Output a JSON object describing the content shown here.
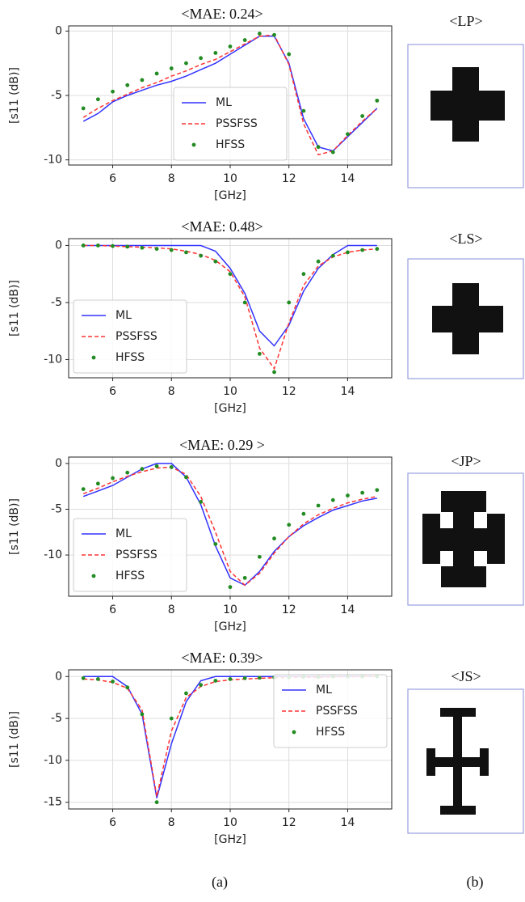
{
  "chart_data": [
    {
      "type": "line",
      "title": "<MAE: 0.24>",
      "x_label": "[GHz]",
      "y_label": "[s11 (dB)]",
      "x": [
        5,
        5.5,
        6,
        6.5,
        7,
        7.5,
        8,
        8.5,
        9,
        9.5,
        10,
        10.5,
        11,
        11.5,
        12,
        12.5,
        13,
        13.5,
        14,
        14.5,
        15
      ],
      "series": [
        {
          "name": "ML",
          "color": "#3333ff",
          "style": "solid",
          "values": [
            -7.0,
            -6.4,
            -5.5,
            -5.0,
            -4.6,
            -4.2,
            -3.9,
            -3.5,
            -3.0,
            -2.5,
            -1.8,
            -1.1,
            -0.4,
            -0.4,
            -2.5,
            -6.8,
            -9.0,
            -9.3,
            -8.2,
            -7.1,
            -6.0
          ]
        },
        {
          "name": "PSSFSS",
          "color": "#ff3333",
          "style": "dashed",
          "values": [
            -6.7,
            -6.0,
            -5.4,
            -4.9,
            -4.4,
            -4.0,
            -3.5,
            -3.1,
            -2.6,
            -2.2,
            -1.6,
            -1.0,
            -0.4,
            -0.3,
            -2.6,
            -7.2,
            -9.6,
            -9.3,
            -8.1,
            -7.0,
            -6.0
          ]
        },
        {
          "name": "HFSS",
          "color": "#228b22",
          "style": "markers",
          "values": [
            -6.0,
            -5.3,
            -4.7,
            -4.2,
            -3.8,
            -3.3,
            -2.9,
            -2.5,
            -2.1,
            -1.7,
            -1.2,
            -0.7,
            -0.2,
            -0.3,
            -1.8,
            -6.2,
            -9.0,
            -9.4,
            -8.0,
            -6.6,
            -5.4
          ]
        }
      ],
      "xlim": [
        4.5,
        15.5
      ],
      "xticks": [
        6,
        8,
        10,
        12,
        14
      ],
      "ylim": [
        -10.4,
        0.4
      ],
      "yticks": [
        -10,
        -5,
        0
      ],
      "grid": true,
      "legend": "lower center"
    },
    {
      "type": "line",
      "title": "<MAE: 0.48>",
      "x_label": "[GHz]",
      "y_label": "[s11 (dB)]",
      "x": [
        5,
        5.5,
        6,
        6.5,
        7,
        7.5,
        8,
        8.5,
        9,
        9.5,
        10,
        10.5,
        11,
        11.5,
        12,
        12.5,
        13,
        13.5,
        14,
        14.5,
        15
      ],
      "series": [
        {
          "name": "ML",
          "color": "#3333ff",
          "style": "solid",
          "values": [
            0,
            0,
            0,
            0,
            0,
            0,
            0,
            0,
            0,
            -0.5,
            -2.0,
            -4.2,
            -7.5,
            -8.8,
            -7.0,
            -4.0,
            -2.0,
            -0.8,
            0,
            0,
            0
          ]
        },
        {
          "name": "PSSFSS",
          "color": "#ff3333",
          "style": "dashed",
          "values": [
            0,
            0,
            -0.05,
            -0.1,
            -0.15,
            -0.2,
            -0.3,
            -0.5,
            -0.8,
            -1.3,
            -2.3,
            -4.5,
            -9.0,
            -10.8,
            -6.8,
            -3.5,
            -1.8,
            -1.0,
            -0.6,
            -0.4,
            -0.3
          ]
        },
        {
          "name": "HFSS",
          "color": "#228b22",
          "style": "markers",
          "values": [
            0,
            0,
            -0.05,
            -0.1,
            -0.2,
            -0.3,
            -0.4,
            -0.6,
            -0.9,
            -1.4,
            -2.5,
            -5.0,
            -9.5,
            -11.1,
            -5.0,
            -2.5,
            -1.4,
            -0.9,
            -0.6,
            -0.4,
            -0.3
          ]
        }
      ],
      "xlim": [
        4.5,
        15.5
      ],
      "xticks": [
        6,
        8,
        10,
        12,
        14
      ],
      "ylim": [
        -11.6,
        0.6
      ],
      "yticks": [
        -10,
        -5,
        0
      ],
      "grid": true,
      "legend": "lower left"
    },
    {
      "type": "line",
      "title": "<MAE: 0.29 >",
      "x_label": "[GHz]",
      "y_label": "[s11 (dB)]",
      "x": [
        5,
        5.5,
        6,
        6.5,
        7,
        7.5,
        8,
        8.5,
        9,
        9.5,
        10,
        10.5,
        11,
        11.5,
        12,
        12.5,
        13,
        13.5,
        14,
        14.5,
        15
      ],
      "series": [
        {
          "name": "ML",
          "color": "#3333ff",
          "style": "solid",
          "values": [
            -3.6,
            -3.0,
            -2.4,
            -1.5,
            -0.6,
            0,
            0,
            -1.5,
            -4.5,
            -9.0,
            -12.5,
            -13.3,
            -11.8,
            -9.6,
            -8.0,
            -6.8,
            -5.9,
            -5.1,
            -4.6,
            -4.1,
            -3.8
          ]
        },
        {
          "name": "PSSFSS",
          "color": "#ff3333",
          "style": "dashed",
          "values": [
            -3.3,
            -2.7,
            -2.0,
            -1.4,
            -0.9,
            -0.5,
            -0.4,
            -1.2,
            -3.6,
            -7.5,
            -11.8,
            -13.3,
            -12.0,
            -9.8,
            -8.0,
            -6.6,
            -5.6,
            -4.9,
            -4.3,
            -3.9,
            -3.6
          ]
        },
        {
          "name": "HFSS",
          "color": "#228b22",
          "style": "markers",
          "values": [
            -2.8,
            -2.2,
            -1.6,
            -1.0,
            -0.6,
            -0.3,
            -0.4,
            -1.5,
            -4.2,
            -8.8,
            -13.5,
            -12.5,
            -10.2,
            -8.2,
            -6.7,
            -5.5,
            -4.6,
            -4.0,
            -3.5,
            -3.2,
            -2.9
          ]
        }
      ],
      "xlim": [
        4.5,
        15.5
      ],
      "xticks": [
        6,
        8,
        10,
        12,
        14
      ],
      "ylim": [
        -14.5,
        0.7
      ],
      "yticks": [
        -10,
        -5,
        0
      ],
      "grid": true,
      "legend": "lower left"
    },
    {
      "type": "line",
      "title": "<MAE: 0.39>",
      "x_label": "[GHz]",
      "y_label": "[s11 (dB)]",
      "x": [
        5,
        5.5,
        6,
        6.5,
        7,
        7.5,
        8,
        8.5,
        9,
        9.5,
        10,
        10.5,
        11,
        11.5,
        12,
        12.5,
        13,
        13.5,
        14,
        14.5,
        15
      ],
      "series": [
        {
          "name": "ML",
          "color": "#3333ff",
          "style": "solid",
          "values": [
            0,
            0,
            0,
            -1.2,
            -4.5,
            -14.5,
            -8.0,
            -3.0,
            -0.5,
            0,
            0,
            0,
            0,
            0,
            0,
            0,
            0,
            0,
            0,
            0,
            0
          ]
        },
        {
          "name": "PSSFSS",
          "color": "#ff3333",
          "style": "dashed",
          "values": [
            -0.3,
            -0.4,
            -0.7,
            -1.4,
            -4.0,
            -14.3,
            -6.5,
            -2.5,
            -1.2,
            -0.6,
            -0.4,
            -0.3,
            -0.2,
            -0.15,
            -0.1,
            -0.1,
            -0.1,
            -0.05,
            -0.05,
            0,
            0
          ]
        },
        {
          "name": "HFSS",
          "color": "#228b22",
          "style": "markers",
          "values": [
            -0.2,
            -0.3,
            -0.6,
            -1.3,
            -4.5,
            -15.0,
            -5.0,
            -2.0,
            -1.0,
            -0.5,
            -0.3,
            -0.2,
            -0.15,
            -0.1,
            -0.1,
            -0.05,
            -0.05,
            0,
            0,
            0,
            0
          ]
        }
      ],
      "xlim": [
        4.5,
        15.5
      ],
      "xticks": [
        6,
        8,
        10,
        12,
        14
      ],
      "ylim": [
        -15.8,
        0.8
      ],
      "yticks": [
        -15,
        -10,
        -5,
        0
      ],
      "grid": true,
      "legend": "upper right"
    }
  ],
  "shapes": [
    "<LP>",
    "<LS>",
    "<JP>",
    "<JS>"
  ],
  "captions": [
    "(a)",
    "(b)"
  ]
}
